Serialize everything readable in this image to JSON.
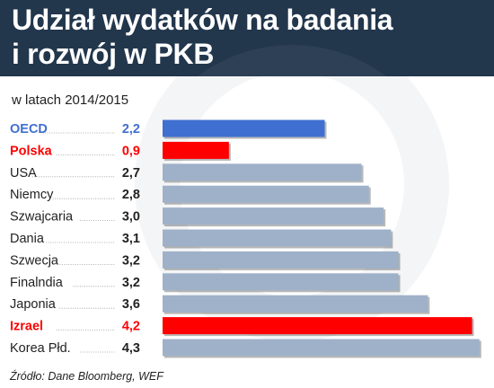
{
  "header": {
    "title_line1": "Udział wydatków na badania",
    "title_line2": "i rozwój w PKB"
  },
  "subtitle": "w latach 2014/2015",
  "source": "Źródło: Dane Bloomberg, WEF",
  "colors": {
    "header_bg": "#22364c",
    "oecd": "#3f6fd1",
    "highlight": "#ff0000",
    "default_bar": "#9fb1c9"
  },
  "chart_data": {
    "type": "bar",
    "orientation": "horizontal",
    "categories": [
      "OECD",
      "Polska",
      "USA",
      "Niemcy",
      "Szwajcaria",
      "Dania",
      "Szwecja",
      "Finalndia",
      "Japonia",
      "Izrael",
      "Korea Płd."
    ],
    "values": [
      2.2,
      0.9,
      2.7,
      2.8,
      3.0,
      3.1,
      3.2,
      3.2,
      3.6,
      4.2,
      4.3
    ],
    "value_labels": [
      "2,2",
      "0,9",
      "2,7",
      "2,8",
      "3,0",
      "3,1",
      "3,2",
      "3,2",
      "3,6",
      "4,2",
      "4,3"
    ],
    "bar_colors": [
      "#3f6fd1",
      "#ff0000",
      "#9fb1c9",
      "#9fb1c9",
      "#9fb1c9",
      "#9fb1c9",
      "#9fb1c9",
      "#9fb1c9",
      "#9fb1c9",
      "#ff0000",
      "#9fb1c9"
    ],
    "label_colors": [
      "#3f6fd1",
      "#ff0000",
      "#222222",
      "#222222",
      "#222222",
      "#222222",
      "#222222",
      "#222222",
      "#222222",
      "#ff0000",
      "#222222"
    ],
    "bold_labels": [
      true,
      true,
      false,
      false,
      false,
      false,
      false,
      false,
      false,
      true,
      false
    ],
    "xlim": [
      0,
      4.4
    ],
    "grid": false
  }
}
